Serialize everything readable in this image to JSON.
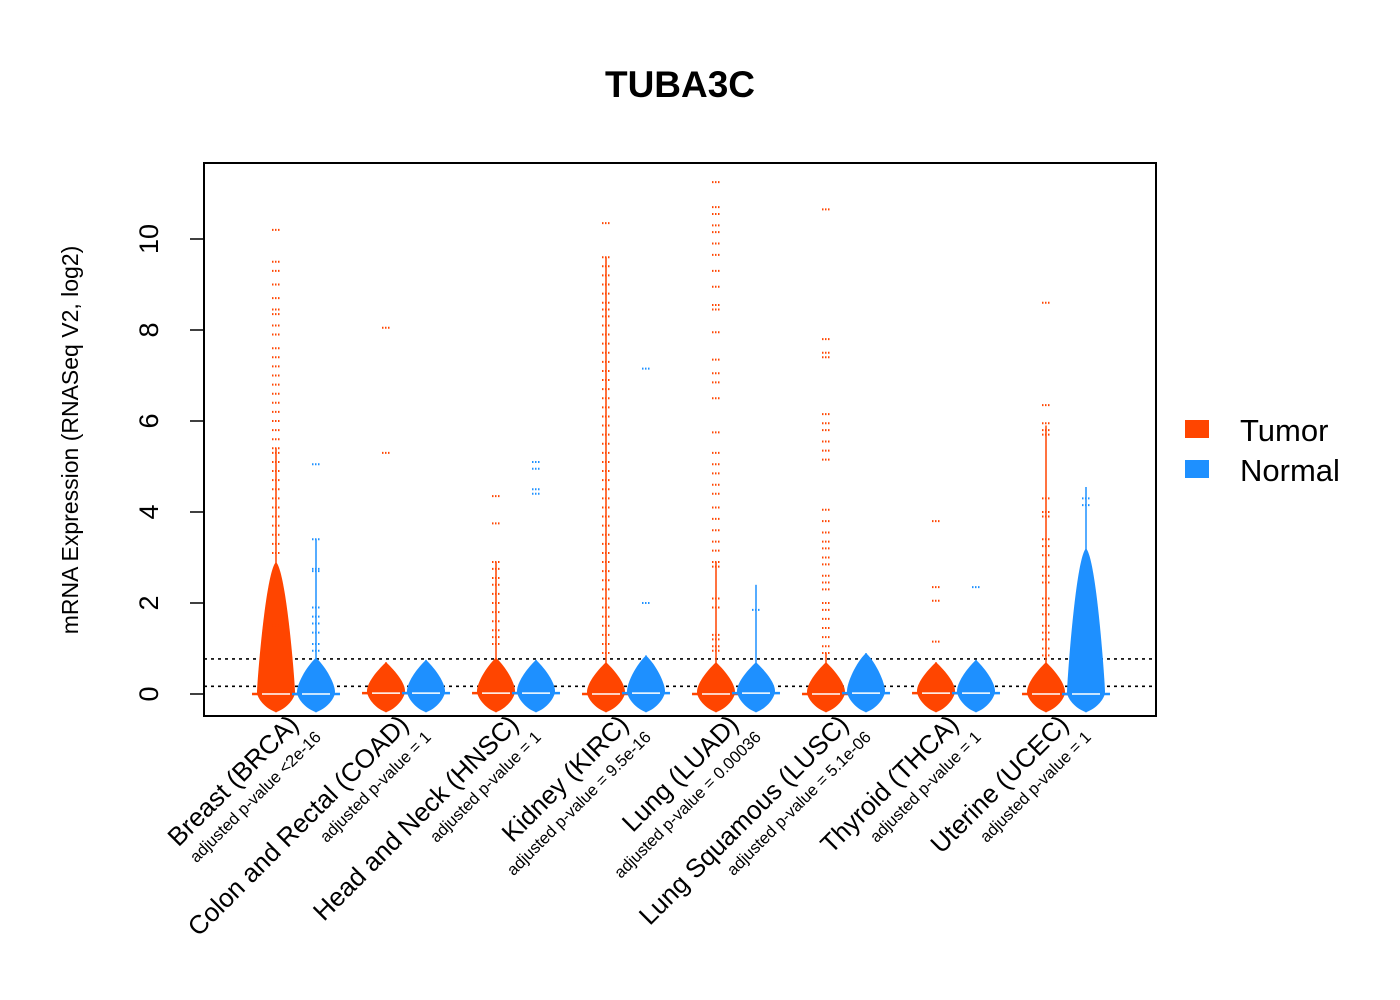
{
  "chart_data": {
    "type": "violin",
    "title": "TUBA3C",
    "ylabel": "mRNA Expression (RNASeq V2, log2)",
    "xlabel": "",
    "ylim": [
      -0.45,
      11.7
    ],
    "yticks": [
      0,
      2,
      4,
      6,
      8,
      10
    ],
    "reference_lines": [
      0.17,
      0.77
    ],
    "legend": {
      "position": "right",
      "entries": [
        {
          "label": "Tumor",
          "color": "#ff4500"
        },
        {
          "label": "Normal",
          "color": "#1e90ff"
        }
      ]
    },
    "categories": [
      {
        "label": "Breast (BRCA)",
        "pvalue": "adjusted p-value <2e-16",
        "tumor": {
          "violin_top": 2.9,
          "line_top": 5.4,
          "median": 0,
          "outliers": [
            10.2,
            9.5,
            9.3,
            9.0,
            8.7,
            8.45,
            8.35,
            8.1,
            7.9,
            7.6,
            7.4,
            7.2,
            7.0,
            6.8,
            6.6,
            6.4,
            6.2,
            6.0,
            5.8,
            5.6,
            5.4,
            5.3,
            5.1,
            4.9,
            4.7,
            4.5,
            4.3,
            4.1,
            3.9,
            3.7,
            3.5,
            3.3,
            3.1,
            1.5
          ]
        },
        "normal": {
          "violin_top": 0.8,
          "line_top": 3.4,
          "median": 0,
          "outliers": [
            5.05,
            3.4,
            2.75,
            2.7,
            1.9,
            1.7,
            1.55,
            1.35,
            1.1,
            0.95
          ]
        }
      },
      {
        "label": "Colon and Rectal (COAD)",
        "pvalue": "adjusted p-value = 1",
        "tumor": {
          "violin_top": 0.7,
          "line_top": 0.7,
          "median": 0.02,
          "outliers": [
            8.05,
            5.3
          ]
        },
        "normal": {
          "violin_top": 0.75,
          "line_top": 0.75,
          "median": 0.02,
          "outliers": []
        }
      },
      {
        "label": "Head and Neck (HNSC)",
        "pvalue": "adjusted p-value = 1",
        "tumor": {
          "violin_top": 0.8,
          "line_top": 2.9,
          "median": 0.02,
          "outliers": [
            4.35,
            3.75,
            2.9,
            2.75,
            2.55,
            2.4,
            2.2,
            2.0,
            1.8,
            1.6,
            1.4,
            1.25,
            1.1
          ]
        },
        "normal": {
          "violin_top": 0.75,
          "line_top": 0.75,
          "median": 0.02,
          "outliers": [
            5.1,
            4.95,
            4.5,
            4.4
          ]
        }
      },
      {
        "label": "Kidney (KIRC)",
        "pvalue": "adjusted p-value = 9.5e-16",
        "tumor": {
          "violin_top": 0.7,
          "line_top": 9.6,
          "median": 0,
          "outliers": [
            10.35,
            9.6,
            9.4,
            9.2,
            9.0,
            8.8,
            8.6,
            8.45,
            8.3,
            8.1,
            7.9,
            7.7,
            7.5,
            7.3,
            7.1,
            6.9,
            6.7,
            6.5,
            6.3,
            6.1,
            5.9,
            5.7,
            5.5,
            5.3,
            5.1,
            4.9,
            4.7,
            4.5,
            4.3,
            4.1,
            3.9,
            3.7,
            3.5,
            3.3,
            3.1,
            2.9,
            2.7,
            2.5,
            2.3,
            2.1,
            1.9,
            1.7,
            1.5,
            1.3,
            1.1,
            0.9
          ]
        },
        "normal": {
          "violin_top": 0.85,
          "line_top": 0.85,
          "median": 0.02,
          "outliers": [
            7.15,
            2.0
          ]
        }
      },
      {
        "label": "Lung (LUAD)",
        "pvalue": "adjusted p-value = 0.00036",
        "tumor": {
          "violin_top": 0.7,
          "line_top": 2.9,
          "median": 0,
          "outliers": [
            11.25,
            10.7,
            10.55,
            10.3,
            10.15,
            9.9,
            9.65,
            9.3,
            8.95,
            8.55,
            8.45,
            7.95,
            7.35,
            7.05,
            6.85,
            6.5,
            5.75,
            5.3,
            5.05,
            4.85,
            4.6,
            4.4,
            4.1,
            3.85,
            3.6,
            3.35,
            3.15,
            2.9,
            2.8,
            2.1,
            1.9,
            1.3,
            1.2,
            1.05,
            0.95
          ]
        },
        "normal": {
          "violin_top": 0.7,
          "line_top": 2.4,
          "median": 0.02,
          "outliers": [
            1.85
          ]
        }
      },
      {
        "label": "Lung Squamous (LUSC)",
        "pvalue": "adjusted p-value = 5.1e-06",
        "tumor": {
          "violin_top": 0.7,
          "line_top": 0.9,
          "median": 0,
          "outliers": [
            10.65,
            7.8,
            7.5,
            7.4,
            6.15,
            5.95,
            5.8,
            5.55,
            5.35,
            5.15,
            4.05,
            3.8,
            3.55,
            3.35,
            3.2,
            3.0,
            2.85,
            2.6,
            2.45,
            2.3,
            2.0,
            1.85,
            1.65,
            1.45,
            1.25,
            1.05,
            0.9
          ]
        },
        "normal": {
          "violin_top": 0.9,
          "line_top": 0.9,
          "median": 0.02,
          "outliers": []
        }
      },
      {
        "label": "Thyroid (THCA)",
        "pvalue": "adjusted p-value = 1",
        "tumor": {
          "violin_top": 0.7,
          "line_top": 0.7,
          "median": 0.02,
          "outliers": [
            3.8,
            2.35,
            2.05,
            1.15
          ]
        },
        "normal": {
          "violin_top": 0.75,
          "line_top": 0.75,
          "median": 0.02,
          "outliers": [
            2.35
          ]
        }
      },
      {
        "label": "Uterine (UCEC)",
        "pvalue": "adjusted p-value = 1",
        "tumor": {
          "violin_top": 0.7,
          "line_top": 5.9,
          "median": 0,
          "outliers": [
            8.6,
            6.35,
            5.95,
            5.8,
            5.7,
            4.3,
            4.0,
            3.9,
            3.4,
            3.25,
            3.05,
            2.8,
            2.6,
            2.45,
            2.1,
            1.95,
            1.75,
            1.5,
            1.35,
            1.2,
            1.0,
            0.85
          ]
        },
        "normal": {
          "violin_top": 3.2,
          "line_top": 4.55,
          "median": 0,
          "outliers": [
            4.3,
            4.15,
            2.95,
            2.9,
            2.4,
            2.3,
            2.2,
            2.1,
            2.0,
            1.9,
            1.8,
            1.7,
            1.6,
            1.5,
            1.4,
            1.3,
            1.2,
            1.1,
            1.0,
            0.9
          ]
        }
      }
    ]
  }
}
